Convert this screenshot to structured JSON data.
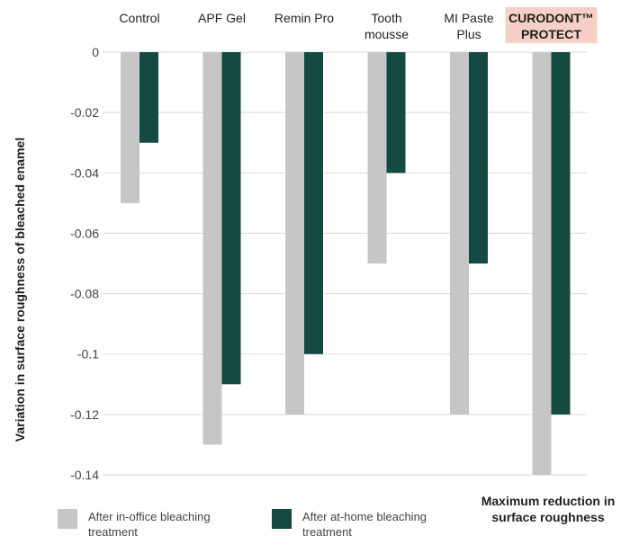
{
  "chart_data": {
    "type": "bar",
    "categories": [
      "Control",
      "APF Gel",
      "Remin Pro",
      "Tooth mousse",
      "MI Paste Plus",
      "CURODONT™ PROTECT"
    ],
    "category_lines": [
      [
        "Control"
      ],
      [
        "APF Gel"
      ],
      [
        "Remin Pro"
      ],
      [
        "Tooth",
        "mousse"
      ],
      [
        "MI Paste",
        "Plus"
      ],
      [
        "CURODONT™",
        "PROTECT"
      ]
    ],
    "highlighted_category": "CURODONT™ PROTECT",
    "series": [
      {
        "name": "After in-office bleaching treatment",
        "values": [
          -0.05,
          -0.13,
          -0.12,
          -0.07,
          -0.12,
          -0.14
        ],
        "color": "#c6c6c6"
      },
      {
        "name": "After at-home bleaching treatment",
        "values": [
          -0.03,
          -0.11,
          -0.1,
          -0.04,
          -0.07,
          -0.12
        ],
        "color": "#144a41"
      }
    ],
    "ylabel": "Variation in surface roughness of bleached enamel",
    "xlabel": "",
    "ylim": [
      -0.14,
      0
    ],
    "yticks": [
      0,
      -0.02,
      -0.04,
      -0.06,
      -0.08,
      -0.1,
      -0.12,
      -0.14
    ],
    "ytick_labels": [
      "0",
      "-0.02",
      "-0.04",
      "-0.06",
      "-0.08",
      "-0.1",
      "-0.12",
      "-0.14"
    ],
    "grid": true,
    "legend_position": "bottom",
    "highlight_color": "#f6cfc6"
  },
  "legend": {
    "in_office_label": "After in-office bleaching treatment",
    "at_home_label": "After at-home bleaching treatment"
  },
  "annotation": {
    "note": "Maximum reduction in surface roughness"
  }
}
